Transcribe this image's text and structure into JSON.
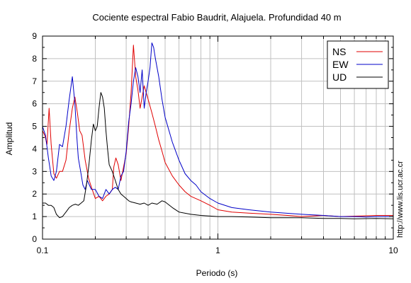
{
  "chart_data": {
    "type": "line",
    "title": "Cociente espectral Fabio Baudrit, Alajuela. Profundidad 40 m",
    "xlabel": "Periodo (s)",
    "ylabel": "Amplitud",
    "xscale": "log",
    "xlim": [
      0.1,
      10
    ],
    "ylim": [
      0,
      9
    ],
    "xticks": [
      {
        "value": 0.1,
        "label": "0.1"
      },
      {
        "value": 1,
        "label": "1"
      },
      {
        "value": 10,
        "label": "10"
      }
    ],
    "yticks": [
      0,
      1,
      2,
      3,
      4,
      5,
      6,
      7,
      8,
      9
    ],
    "grid": true,
    "legend_position": "top-right",
    "series": [
      {
        "name": "NS",
        "color": "#e00000",
        "x": [
          0.1,
          0.103,
          0.106,
          0.109,
          0.112,
          0.116,
          0.12,
          0.125,
          0.13,
          0.136,
          0.142,
          0.148,
          0.153,
          0.158,
          0.163,
          0.168,
          0.175,
          0.183,
          0.19,
          0.2,
          0.21,
          0.22,
          0.23,
          0.24,
          0.25,
          0.255,
          0.262,
          0.27,
          0.28,
          0.29,
          0.3,
          0.31,
          0.32,
          0.33,
          0.34,
          0.35,
          0.36,
          0.37,
          0.38,
          0.4,
          0.42,
          0.44,
          0.46,
          0.48,
          0.5,
          0.55,
          0.6,
          0.65,
          0.7,
          0.8,
          0.9,
          1.0,
          1.2,
          1.5,
          2.0,
          2.5,
          3.0,
          4.0,
          5.0,
          6.0,
          8.0,
          10.0
        ],
        "y": [
          4.8,
          4.6,
          4.2,
          5.8,
          4.2,
          2.9,
          2.7,
          3.0,
          3.0,
          3.5,
          4.8,
          5.8,
          6.3,
          5.6,
          4.8,
          4.6,
          3.5,
          2.7,
          2.3,
          1.8,
          1.9,
          1.7,
          1.9,
          2.0,
          2.2,
          3.2,
          3.6,
          3.3,
          2.6,
          3.2,
          3.8,
          5.0,
          6.5,
          8.6,
          7.2,
          6.6,
          5.8,
          6.3,
          6.8,
          6.2,
          5.6,
          5.0,
          4.4,
          3.9,
          3.4,
          2.8,
          2.4,
          2.1,
          1.9,
          1.7,
          1.5,
          1.3,
          1.2,
          1.15,
          1.1,
          1.05,
          1.0,
          1.05,
          1.0,
          1.02,
          1.05,
          1.05
        ]
      },
      {
        "name": "EW",
        "color": "#0000c8",
        "x": [
          0.1,
          0.104,
          0.108,
          0.112,
          0.116,
          0.12,
          0.125,
          0.13,
          0.136,
          0.142,
          0.148,
          0.153,
          0.157,
          0.16,
          0.165,
          0.17,
          0.175,
          0.18,
          0.185,
          0.19,
          0.2,
          0.21,
          0.22,
          0.23,
          0.24,
          0.25,
          0.26,
          0.27,
          0.28,
          0.29,
          0.3,
          0.31,
          0.32,
          0.33,
          0.34,
          0.35,
          0.36,
          0.37,
          0.38,
          0.39,
          0.4,
          0.41,
          0.42,
          0.43,
          0.44,
          0.46,
          0.48,
          0.5,
          0.55,
          0.6,
          0.65,
          0.7,
          0.75,
          0.8,
          0.9,
          1.0,
          1.2,
          1.5,
          2.0,
          3.0,
          4.0,
          5.0,
          6.0,
          7.0,
          8.0,
          10.0
        ],
        "y": [
          5.0,
          4.6,
          3.6,
          2.8,
          2.6,
          3.0,
          4.2,
          4.1,
          5.0,
          6.2,
          7.2,
          6.0,
          4.5,
          3.6,
          3.0,
          2.4,
          2.2,
          2.6,
          2.4,
          2.2,
          2.2,
          1.9,
          1.8,
          2.2,
          2.0,
          2.2,
          2.3,
          2.2,
          2.8,
          3.0,
          3.9,
          5.2,
          6.0,
          7.0,
          7.6,
          7.2,
          6.5,
          7.5,
          5.8,
          6.5,
          7.0,
          7.6,
          8.7,
          8.5,
          8.0,
          7.2,
          6.2,
          5.4,
          4.3,
          3.5,
          2.9,
          2.6,
          2.4,
          2.1,
          1.8,
          1.6,
          1.4,
          1.3,
          1.2,
          1.1,
          1.05,
          1.0,
          1.0,
          0.98,
          1.0,
          1.0
        ]
      },
      {
        "name": "UD",
        "color": "#000000",
        "x": [
          0.1,
          0.104,
          0.108,
          0.112,
          0.116,
          0.12,
          0.125,
          0.13,
          0.136,
          0.142,
          0.148,
          0.154,
          0.16,
          0.166,
          0.172,
          0.178,
          0.184,
          0.19,
          0.195,
          0.2,
          0.205,
          0.21,
          0.215,
          0.22,
          0.225,
          0.23,
          0.235,
          0.24,
          0.25,
          0.26,
          0.27,
          0.28,
          0.29,
          0.3,
          0.31,
          0.32,
          0.34,
          0.36,
          0.38,
          0.4,
          0.42,
          0.45,
          0.48,
          0.5,
          0.55,
          0.6,
          0.7,
          0.8,
          1.0,
          1.2,
          1.5,
          2.0,
          3.0,
          4.0,
          5.0,
          6.0,
          8.0,
          10.0
        ],
        "y": [
          1.6,
          1.6,
          1.5,
          1.5,
          1.4,
          1.1,
          0.95,
          1.0,
          1.2,
          1.4,
          1.5,
          1.55,
          1.5,
          1.6,
          1.7,
          2.4,
          3.3,
          4.4,
          5.1,
          4.8,
          5.0,
          5.8,
          6.5,
          6.3,
          5.8,
          4.8,
          4.0,
          3.3,
          3.0,
          2.6,
          2.2,
          2.0,
          1.9,
          1.8,
          1.7,
          1.65,
          1.6,
          1.55,
          1.6,
          1.5,
          1.6,
          1.55,
          1.7,
          1.65,
          1.4,
          1.2,
          1.1,
          1.05,
          1.0,
          1.0,
          0.98,
          0.95,
          0.95,
          0.92,
          0.92,
          0.9,
          0.92,
          0.9
        ]
      }
    ]
  },
  "side_note": "http://www.lis.ucr.ac.cr"
}
